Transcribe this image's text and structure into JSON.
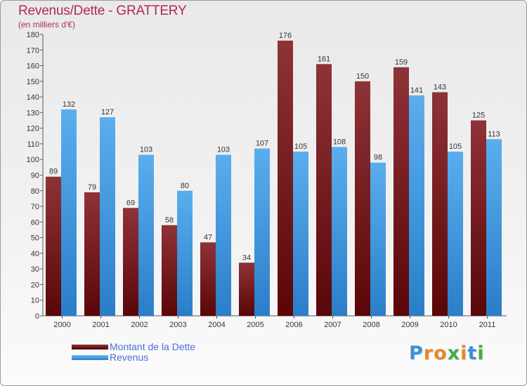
{
  "title": "Revenus/Dette - GRATTERY",
  "subtitle": "(en milliers d'€)",
  "colors": {
    "title": "#b2285b",
    "dette": "#7a1a1f",
    "revenus": "#3d9ae6",
    "legend_text": "#4a6fd6"
  },
  "legend": {
    "dette_label": "Montant de la Dette",
    "revenus_label": "Revenus"
  },
  "logo": {
    "text": "Proxiti",
    "letters": [
      "P",
      "r",
      "o",
      "x",
      "i",
      "t",
      "i"
    ],
    "letter_colors": [
      "#3a8fd8",
      "#e6892a",
      "#e6892a",
      "#3fae49",
      "#e6892a",
      "#3a8fd8",
      "#3fae49"
    ]
  },
  "chart_data": {
    "type": "bar",
    "categories": [
      "2000",
      "2001",
      "2002",
      "2003",
      "2004",
      "2005",
      "2006",
      "2007",
      "2008",
      "2009",
      "2010",
      "2011"
    ],
    "series": [
      {
        "name": "Montant de la Dette",
        "values": [
          89,
          79,
          69,
          58,
          47,
          34,
          176,
          161,
          150,
          159,
          143,
          125
        ]
      },
      {
        "name": "Revenus",
        "values": [
          132,
          127,
          103,
          80,
          103,
          107,
          105,
          108,
          98,
          141,
          105,
          113
        ]
      }
    ],
    "yticks": [
      0,
      10,
      20,
      30,
      40,
      50,
      60,
      70,
      80,
      90,
      100,
      110,
      120,
      130,
      140,
      150,
      160,
      170,
      180
    ],
    "ylim": [
      0,
      180
    ],
    "grid": false,
    "legend_position": "bottom-left"
  }
}
